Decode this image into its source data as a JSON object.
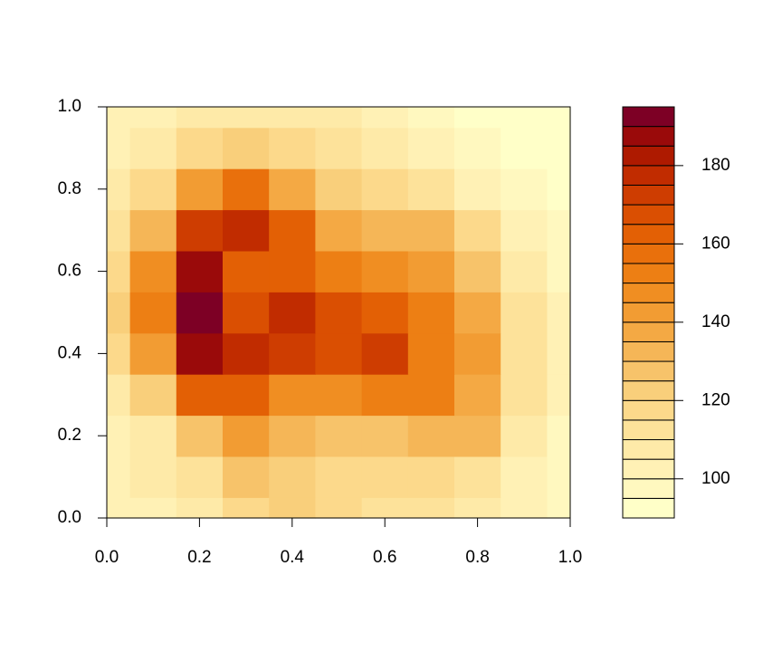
{
  "chart_data": {
    "type": "filled-contour",
    "x": [
      0,
      0.1,
      0.2,
      0.3,
      0.4,
      0.5,
      0.6,
      0.7,
      0.8,
      0.9,
      1
    ],
    "y": [
      0,
      0.1,
      0.2,
      0.3,
      0.4,
      0.5,
      0.6,
      0.7,
      0.8,
      0.9,
      1
    ],
    "z": [
      [
        100,
        100,
        105,
        115,
        120,
        115,
        110,
        110,
        105,
        100,
        95
      ],
      [
        100,
        105,
        110,
        125,
        120,
        115,
        115,
        115,
        110,
        100,
        95
      ],
      [
        100,
        105,
        125,
        140,
        130,
        125,
        125,
        130,
        130,
        105,
        95
      ],
      [
        105,
        120,
        160,
        160,
        145,
        145,
        150,
        150,
        135,
        110,
        100
      ],
      [
        115,
        140,
        185,
        175,
        170,
        165,
        170,
        150,
        140,
        110,
        100
      ],
      [
        120,
        150,
        195,
        165,
        175,
        165,
        160,
        150,
        135,
        110,
        100
      ],
      [
        115,
        145,
        185,
        160,
        160,
        150,
        145,
        140,
        125,
        105,
        95
      ],
      [
        110,
        130,
        170,
        175,
        160,
        135,
        130,
        130,
        115,
        100,
        95
      ],
      [
        105,
        115,
        140,
        155,
        135,
        120,
        115,
        110,
        100,
        95,
        93
      ],
      [
        100,
        105,
        115,
        120,
        115,
        110,
        105,
        100,
        95,
        93,
        92
      ],
      [
        100,
        100,
        105,
        105,
        105,
        105,
        100,
        95,
        93,
        92,
        92
      ]
    ],
    "levels": [
      90,
      95,
      100,
      105,
      110,
      115,
      120,
      125,
      130,
      135,
      140,
      145,
      150,
      155,
      160,
      165,
      170,
      175,
      180,
      185,
      190,
      195
    ],
    "colors": [
      "#FFFFC8",
      "#FFF8BF",
      "#FFF1B5",
      "#FEEAA8",
      "#FDE29A",
      "#FCD98B",
      "#F9CF7B",
      "#F7C36A",
      "#F5B657",
      "#F4A944",
      "#F29C33",
      "#F08E22",
      "#ED7F14",
      "#E9700C",
      "#E36005",
      "#DA4F02",
      "#CE3D01",
      "#C12C00",
      "#AE1A00",
      "#9A0A0A",
      "#7D0025"
    ],
    "zticks": [
      100,
      120,
      140,
      160,
      180
    ],
    "xlim": [
      0,
      1
    ],
    "ylim": [
      0,
      1
    ],
    "xticks": [
      {
        "value": 0,
        "label": "0.0"
      },
      {
        "value": 0.2,
        "label": "0.2"
      },
      {
        "value": 0.4,
        "label": "0.4"
      },
      {
        "value": 0.6,
        "label": "0.6"
      },
      {
        "value": 0.8,
        "label": "0.8"
      },
      {
        "value": 1,
        "label": "1.0"
      }
    ],
    "yticks": [
      {
        "value": 0,
        "label": "0.0"
      },
      {
        "value": 0.2,
        "label": "0.2"
      },
      {
        "value": 0.4,
        "label": "0.4"
      },
      {
        "value": 0.6,
        "label": "0.6"
      },
      {
        "value": 0.8,
        "label": "0.8"
      },
      {
        "value": 1,
        "label": "1.0"
      }
    ]
  }
}
